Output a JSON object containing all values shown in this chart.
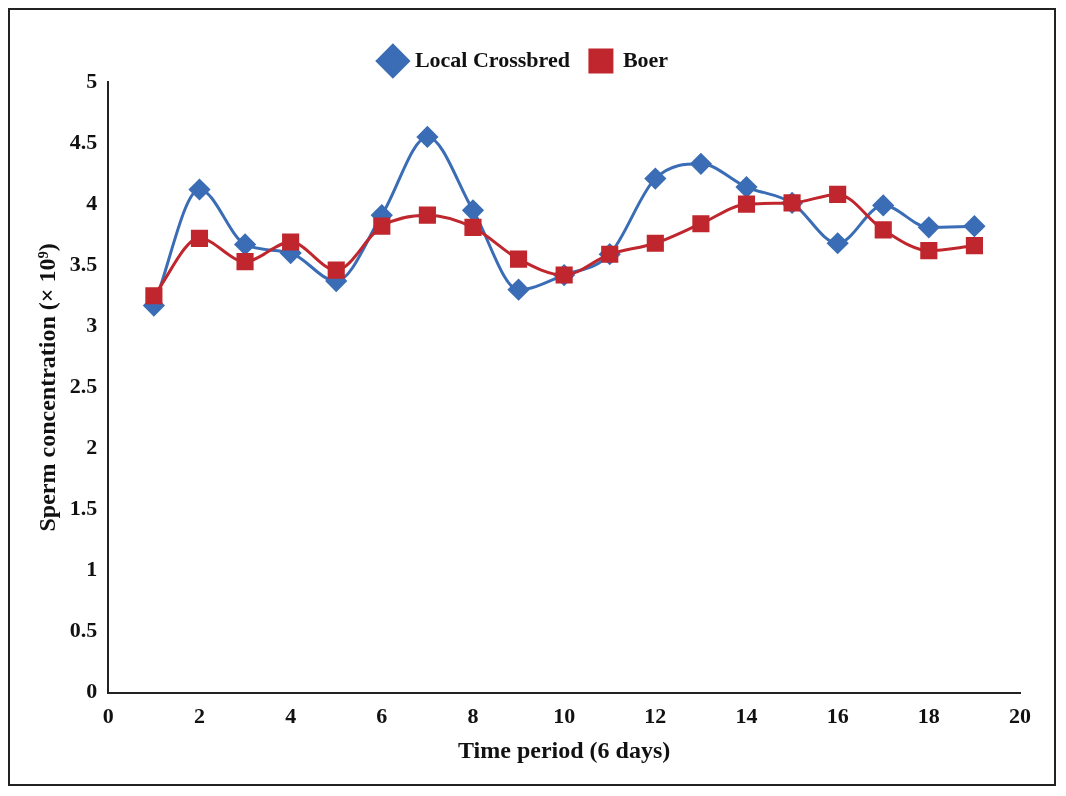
{
  "chart_data": {
    "type": "line",
    "xlabel": "Time period (6 days)",
    "ylabel": "Sperm concentration (× 10⁹)",
    "x": [
      1,
      2,
      3,
      4,
      5,
      6,
      7,
      8,
      9,
      10,
      11,
      12,
      13,
      14,
      15,
      16,
      17,
      18,
      19
    ],
    "xlim": [
      0,
      20
    ],
    "xticks": [
      0,
      2,
      4,
      6,
      8,
      10,
      12,
      14,
      16,
      18,
      20
    ],
    "ylim": [
      0,
      5
    ],
    "yticks": [
      0,
      0.5,
      1,
      1.5,
      2,
      2.5,
      3,
      3.5,
      4,
      4.5,
      5
    ],
    "grid": false,
    "legend": "top",
    "series": [
      {
        "name": "Local Crossbred",
        "color": "#3a6db5",
        "marker": "diamond",
        "values": [
          3.17,
          4.12,
          3.67,
          3.6,
          3.37,
          3.91,
          4.55,
          3.95,
          3.3,
          3.42,
          3.59,
          4.21,
          4.33,
          4.14,
          4.01,
          3.68,
          3.99,
          3.81,
          3.82
        ]
      },
      {
        "name": "Boer",
        "color": "#c0262d",
        "marker": "square",
        "values": [
          3.25,
          3.72,
          3.53,
          3.69,
          3.46,
          3.82,
          3.91,
          3.81,
          3.55,
          3.42,
          3.59,
          3.68,
          3.84,
          4.0,
          4.01,
          4.08,
          3.79,
          3.62,
          3.66
        ]
      }
    ]
  }
}
